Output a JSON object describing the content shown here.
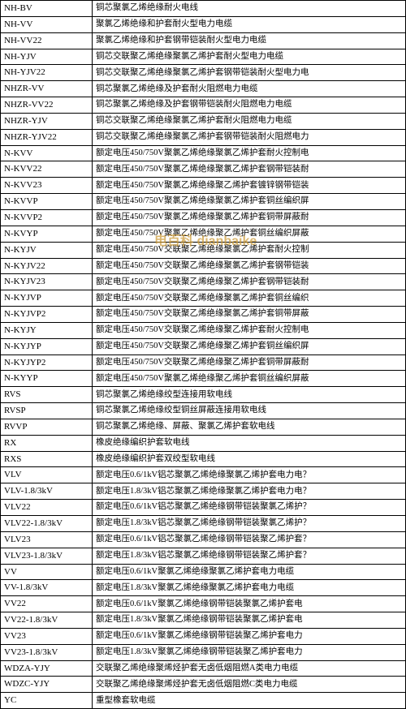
{
  "watermark": "电百科 dianbaike",
  "table": {
    "border_color": "#000000",
    "background_color": "#ffffff",
    "text_color": "#000000",
    "code_col_width": 104,
    "font_size_code": 11,
    "font_size_desc": 10.5,
    "rows": [
      {
        "code": "NH-BV",
        "desc": "铜芯聚氯乙烯绝缘耐火电线"
      },
      {
        "code": "NH-VV",
        "desc": "聚氯乙烯绝缘和护套耐火型电力电缆"
      },
      {
        "code": "NH-VV22",
        "desc": "聚氯乙烯绝缘和护套钢带铠装耐火型电力电缆"
      },
      {
        "code": "NH-YJV",
        "desc": "铜芯交联聚乙烯绝缘聚氯乙烯护套耐火型电力电缆"
      },
      {
        "code": "NH-YJV22",
        "desc": "铜芯交联聚乙烯绝缘聚氯乙烯护套钢带铠装耐火型电力电"
      },
      {
        "code": "NHZR-VV",
        "desc": "铜芯聚氯乙烯绝缘及护套耐火阻燃电力电缆"
      },
      {
        "code": "NHZR-VV22",
        "desc": "铜芯聚氯乙烯绝缘及护套钢带铠装耐火阻燃电力电缆"
      },
      {
        "code": "NHZR-YJV",
        "desc": "铜芯交联聚乙烯绝缘聚氯乙烯护套耐火阻燃电力电缆"
      },
      {
        "code": "NHZR-YJV22",
        "desc": "铜芯交联聚乙烯绝缘聚氯乙烯护套钢带铠装耐火阻燃电力"
      },
      {
        "code": "N-KVV",
        "desc": "额定电压450/750V聚氯乙烯绝缘聚氯乙烯护套耐火控制电"
      },
      {
        "code": "N-KVV22",
        "desc": "额定电压450/750V聚氯乙烯绝缘聚氯乙烯护套钢带铠装耐"
      },
      {
        "code": "N-KVV23",
        "desc": "额定电压450/750V聚氯乙烯绝缘聚乙烯护套镀锌钢带铠装"
      },
      {
        "code": "N-KVVP",
        "desc": "额定电压450/750V聚氯乙烯绝缘聚氯乙烯护套铜丝编织屏"
      },
      {
        "code": "N-KVVP2",
        "desc": "额定电压450/750V聚氯乙烯绝缘聚氯乙烯护套铜带屏蔽耐"
      },
      {
        "code": "N-KVYP",
        "desc": "额定电压450/750V聚氯乙烯绝缘聚乙烯护套铜丝编织屏蔽"
      },
      {
        "code": "N-KYJV",
        "desc": "额定电压450/750V交联聚乙烯绝缘聚氯乙烯护套耐火控制"
      },
      {
        "code": "N-KYJV22",
        "desc": "额定电压450/750V交联聚乙烯绝缘聚氯乙烯护套钢带铠装"
      },
      {
        "code": "N-KYJV23",
        "desc": "额定电压450/750V交联聚乙烯绝缘聚乙烯护套钢带铠装耐"
      },
      {
        "code": "N-KYJVP",
        "desc": "额定电压450/750V交联聚乙烯绝缘聚氯乙烯护套铜丝编织"
      },
      {
        "code": "N-KYJVP2",
        "desc": "额定电压450/750V交联聚乙烯绝缘聚氯乙烯护套铜带屏蔽"
      },
      {
        "code": "N-KYJY",
        "desc": "额定电压450/750V交联聚乙烯绝缘聚乙烯护套耐火控制电"
      },
      {
        "code": "N-KYJYP",
        "desc": "额定电压450/750V交联聚乙烯绝缘聚乙烯护套铜丝编织屏"
      },
      {
        "code": "N-KYJYP2",
        "desc": "额定电压450/750V交联聚乙烯绝缘聚乙烯护套铜带屏蔽耐"
      },
      {
        "code": "N-KYYP",
        "desc": "额定电压450/750V聚氯乙烯绝缘聚乙烯护套铜丝编织屏蔽"
      },
      {
        "code": "RVS",
        "desc": "铜芯聚氯乙烯绝缘绞型连接用软电线"
      },
      {
        "code": "RVSP",
        "desc": "铜芯聚氯乙烯绝缘绞型铜丝屏蔽连接用软电线"
      },
      {
        "code": "RVVP",
        "desc": "铜芯聚氯乙烯绝缘、屏蔽、聚氯乙烯护套软电线"
      },
      {
        "code": "RX",
        "desc": "橡皮绝缘编织护套软电线"
      },
      {
        "code": "RXS",
        "desc": "橡皮绝缘编织护套双绞型软电线"
      },
      {
        "code": "VLV",
        "desc": "额定电压0.6/1kV铝芯聚氯乙烯绝缘聚氯乙烯护套电力电？"
      },
      {
        "code": "VLV-1.8/3kV",
        "desc": "额定电压1.8/3kV铝芯聚氯乙烯绝缘聚氯乙烯护套电力电？"
      },
      {
        "code": "VLV22",
        "desc": "额定电压0.6/1kV铝芯聚氯乙烯绝缘钢带铠装聚氯乙烯护？"
      },
      {
        "code": "VLV22-1.8/3kV",
        "desc": "额定电压1.8/3kV铝芯聚氯乙烯绝缘钢带铠装聚氯乙烯护？"
      },
      {
        "code": "VLV23",
        "desc": "额定电压0.6/1kV铝芯聚氯乙烯绝缘钢带铠装聚乙烯护套？"
      },
      {
        "code": "VLV23-1.8/3kV",
        "desc": "额定电压1.8/3kV铝芯聚氯乙烯绝缘钢带铠装聚乙烯护套？"
      },
      {
        "code": "VV",
        "desc": "额定电压0.6/1kV聚氯乙烯绝缘聚氯乙烯护套电力电缆"
      },
      {
        "code": "VV-1.8/3kV",
        "desc": "额定电压1.8/3kV聚氯乙烯绝缘聚氯乙烯护套电力电缆"
      },
      {
        "code": "VV22",
        "desc": "额定电压0.6/1kV聚氯乙烯绝缘钢带铠装聚氯乙烯护套电"
      },
      {
        "code": "VV22-1.8/3kV",
        "desc": "额定电压1.8/3kV聚氯乙烯绝缘钢带铠装聚氯乙烯护套电"
      },
      {
        "code": "VV23",
        "desc": "额定电压0.6/1kV聚氯乙烯绝缘钢带铠装聚乙烯护套电力"
      },
      {
        "code": "VV23-1.8/3kV",
        "desc": "额定电压1.8/3kV聚氯乙烯绝缘钢带铠装聚乙烯护套电力"
      },
      {
        "code": "WDZA-YJY",
        "desc": "交联聚乙烯绝缘聚烯烃护套无卤低烟阻燃A类电力电缆"
      },
      {
        "code": "WDZC-YJY",
        "desc": "交联聚乙烯绝缘聚烯烃护套无卤低烟阻燃C类电力电缆"
      },
      {
        "code": "YC",
        "desc": "重型橡套软电缆"
      }
    ]
  }
}
